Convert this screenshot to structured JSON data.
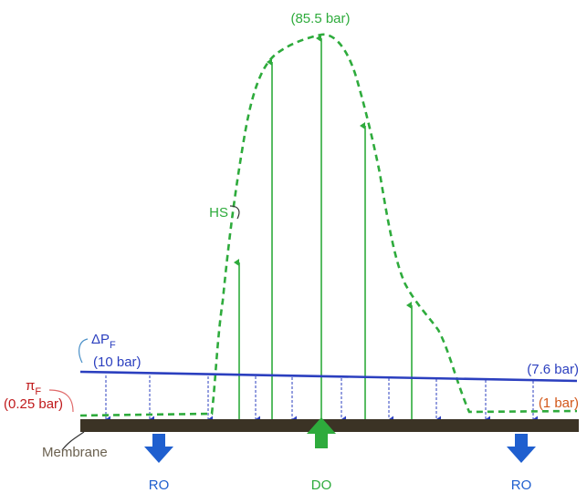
{
  "labels": {
    "peak": "(85.5 bar)",
    "hs": "HS",
    "delta_p_symbol": "ΔP",
    "delta_p_sub": "F",
    "delta_p_left": "(10 bar)",
    "delta_p_right": "(7.6 bar)",
    "pi_symbol": "π",
    "pi_sub": "F",
    "pi_left": "(0.25 bar)",
    "pi_right": "(1 bar)",
    "membrane": "Membrane",
    "ro_left": "RO",
    "do": "DO",
    "ro_right": "RO"
  },
  "colors": {
    "hs_green": "#2eab3c",
    "pressure_blue": "#2b3fbf",
    "osmotic_red": "#c0191b",
    "osmotic_orange": "#d2581a",
    "membrane_brown": "#3b3325",
    "membrane_label": "#6b6150",
    "flux_blue": "#1f5fcf",
    "flux_green": "#2eab3c"
  },
  "icons": {
    "ro_left_arrow": "down-arrow-icon",
    "do_arrow": "up-arrow-icon",
    "ro_right_arrow": "down-arrow-icon"
  }
}
